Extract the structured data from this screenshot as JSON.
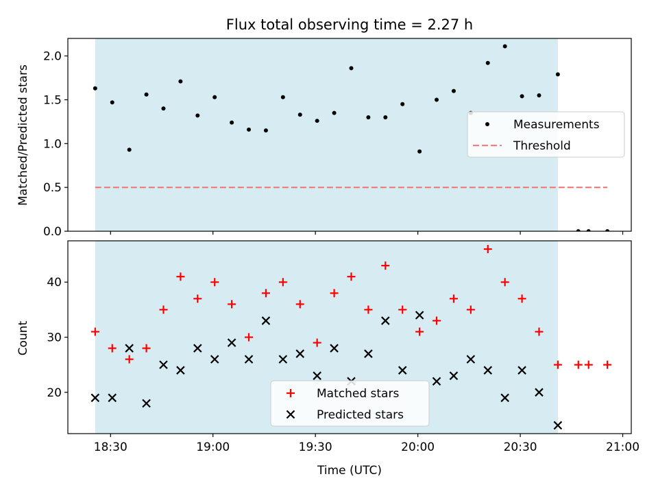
{
  "chart_data": [
    {
      "type": "scatter",
      "title": "Flux total observing time = 2.27 h",
      "xlabel": "",
      "ylabel": "Matched/Predicted stars",
      "x_unit": "minutes since 18:00 UTC",
      "xlim": [
        17.5,
        182.5
      ],
      "ylim": [
        0,
        2.2
      ],
      "yticks": [
        0.0,
        0.5,
        1.0,
        1.5,
        2.0
      ],
      "ytick_labels": [
        "0.0",
        "0.5",
        "1.0",
        "1.5",
        "2.0"
      ],
      "shaded_region": [
        25.5,
        161
      ],
      "shaded_color": "#add8e6",
      "legend_position": "center-right",
      "series": [
        {
          "name": "Measurements",
          "marker": "dot",
          "color": "#000000",
          "x": [
            25.5,
            30.5,
            35.5,
            40.5,
            45.5,
            50.5,
            55.5,
            60.5,
            65.5,
            70.5,
            75.5,
            80.5,
            85.5,
            90.5,
            95.5,
            100.5,
            105.5,
            110.5,
            115.5,
            120.5,
            125.5,
            130.5,
            135.5,
            140.5,
            145.5,
            150.5,
            155.5,
            161,
            167,
            170,
            175.5
          ],
          "y": [
            1.63,
            1.47,
            0.93,
            1.56,
            1.4,
            1.71,
            1.32,
            1.53,
            1.24,
            1.16,
            1.15,
            1.53,
            1.33,
            1.26,
            1.35,
            1.86,
            1.3,
            1.3,
            1.45,
            0.91,
            1.5,
            1.6,
            1.35,
            1.92,
            2.11,
            1.54,
            1.55,
            1.79,
            0.0,
            0.0,
            0.0
          ]
        },
        {
          "name": "Threshold",
          "marker": "dashed-line",
          "color": "#f08080",
          "x": [
            25.5,
            175.5
          ],
          "y": [
            0.5,
            0.5
          ]
        }
      ]
    },
    {
      "type": "scatter",
      "title": "",
      "xlabel": "Time (UTC)",
      "ylabel": "Count",
      "x_unit": "minutes since 18:00 UTC",
      "xlim": [
        17.5,
        182.5
      ],
      "ylim": [
        12.5,
        47.5
      ],
      "xticks": [
        30,
        60,
        90,
        120,
        150,
        180
      ],
      "xtick_labels": [
        "18:30",
        "19:00",
        "19:30",
        "20:00",
        "20:30",
        "21:00"
      ],
      "yticks": [
        20,
        30,
        40
      ],
      "ytick_labels": [
        "20",
        "30",
        "40"
      ],
      "shaded_region": [
        25.5,
        161
      ],
      "shaded_color": "#add8e6",
      "legend_position": "bottom-center",
      "series": [
        {
          "name": "Matched stars",
          "marker": "plus",
          "color": "#ff0000",
          "x": [
            25.5,
            30.5,
            35.5,
            40.5,
            45.5,
            50.5,
            55.5,
            60.5,
            65.5,
            70.5,
            75.5,
            80.5,
            85.5,
            90.5,
            95.5,
            100.5,
            105.5,
            110.5,
            115.5,
            120.5,
            125.5,
            130.5,
            135.5,
            140.5,
            145.5,
            150.5,
            155.5,
            161,
            167,
            170,
            175.5
          ],
          "y": [
            31,
            28,
            26,
            28,
            35,
            41,
            37,
            40,
            36,
            30,
            38,
            40,
            36,
            29,
            38,
            41,
            35,
            43,
            35,
            31,
            33,
            37,
            35,
            46,
            40,
            37,
            31,
            25,
            25,
            25,
            25
          ]
        },
        {
          "name": "Predicted stars",
          "marker": "x",
          "color": "#000000",
          "x": [
            25.5,
            30.5,
            35.5,
            40.5,
            45.5,
            50.5,
            55.5,
            60.5,
            65.5,
            70.5,
            75.5,
            80.5,
            85.5,
            90.5,
            95.5,
            100.5,
            105.5,
            110.5,
            115.5,
            120.5,
            125.5,
            130.5,
            135.5,
            140.5,
            145.5,
            150.5,
            155.5,
            161
          ],
          "y": [
            19,
            19,
            28,
            18,
            25,
            24,
            28,
            26,
            29,
            26,
            33,
            26,
            27,
            23,
            28,
            22,
            27,
            33,
            24,
            34,
            22,
            23,
            26,
            24,
            19,
            24,
            20,
            14
          ]
        }
      ]
    }
  ]
}
